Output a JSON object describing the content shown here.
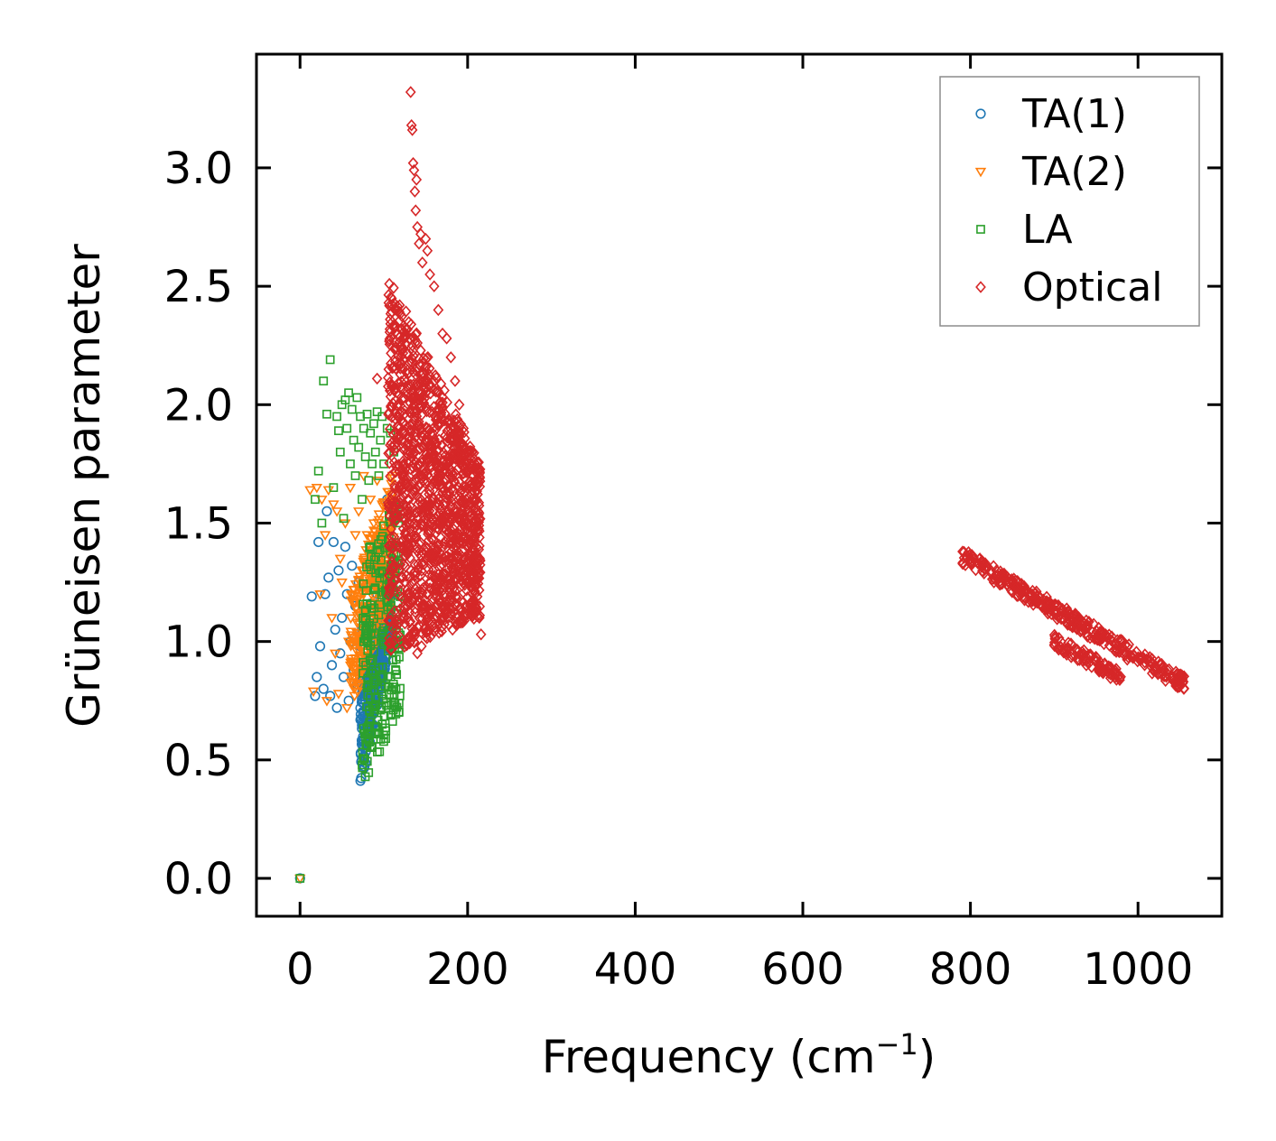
{
  "chart_data": {
    "type": "scatter",
    "title": "",
    "xlabel": "Frequency (cm",
    "xlabel_sup": "−1",
    "xlabel_close": ")",
    "ylabel": "Grüneisen parameter",
    "xlim": [
      -52,
      1100
    ],
    "ylim": [
      -0.16,
      3.48
    ],
    "xticks": [
      0,
      200,
      400,
      600,
      800,
      1000
    ],
    "xtick_labels": [
      "0",
      "200",
      "400",
      "600",
      "800",
      "1000"
    ],
    "yticks": [
      0.0,
      0.5,
      1.0,
      1.5,
      2.0,
      2.5,
      3.0
    ],
    "ytick_labels": [
      "0.0",
      "0.5",
      "1.0",
      "1.5",
      "2.0",
      "2.5",
      "3.0"
    ],
    "grid": false,
    "legend_position": "top-right",
    "series": [
      {
        "name": "TA(1)",
        "marker": "circle",
        "color": "#1f77b4",
        "points": [
          [
            0,
            0.0
          ],
          [
            14,
            1.19
          ],
          [
            18,
            0.77
          ],
          [
            20,
            0.85
          ],
          [
            22,
            1.42
          ],
          [
            24,
            0.98
          ],
          [
            28,
            0.8
          ],
          [
            30,
            1.2
          ],
          [
            32,
            1.55
          ],
          [
            34,
            1.27
          ],
          [
            36,
            0.77
          ],
          [
            38,
            0.9
          ],
          [
            40,
            1.42
          ],
          [
            42,
            1.05
          ],
          [
            44,
            0.72
          ],
          [
            46,
            1.3
          ],
          [
            48,
            0.95
          ],
          [
            50,
            1.1
          ],
          [
            52,
            0.85
          ],
          [
            54,
            1.4
          ],
          [
            56,
            1.2
          ],
          [
            58,
            0.75
          ],
          [
            60,
            1.0
          ],
          [
            62,
            1.32
          ],
          [
            64,
            0.88
          ],
          [
            66,
            1.15
          ],
          [
            68,
            0.82
          ],
          [
            70,
            1.25
          ],
          [
            72,
            0.98
          ],
          [
            74,
            1.05
          ],
          [
            76,
            0.7
          ],
          [
            78,
            1.1
          ],
          [
            80,
            0.85
          ],
          [
            82,
            0.9
          ],
          [
            84,
            1.16
          ],
          [
            86,
            0.8
          ],
          [
            88,
            1.0
          ],
          [
            90,
            0.78
          ],
          [
            92,
            1.2
          ],
          [
            94,
            0.95
          ],
          [
            96,
            1.3
          ],
          [
            98,
            1.05
          ],
          [
            100,
            1.45
          ],
          [
            102,
            1.25
          ],
          [
            104,
            1.6
          ],
          [
            106,
            1.35
          ]
        ],
        "band": {
          "x_start": 72,
          "x_end": 108,
          "y_low_start": 0.38,
          "y_low_end": 1.0,
          "y_high_start": 0.85,
          "y_high_end": 1.25,
          "count": 320
        }
      },
      {
        "name": "TA(2)",
        "marker": "triangle-down",
        "color": "#ff7f0e",
        "points": [
          [
            0,
            0.0
          ],
          [
            12,
            1.64
          ],
          [
            16,
            0.79
          ],
          [
            20,
            1.65
          ],
          [
            24,
            1.2
          ],
          [
            26,
            1.6
          ],
          [
            30,
            1.45
          ],
          [
            32,
            0.75
          ],
          [
            34,
            1.64
          ],
          [
            38,
            1.1
          ],
          [
            40,
            1.58
          ],
          [
            42,
            0.95
          ],
          [
            44,
            1.55
          ],
          [
            46,
            0.78
          ],
          [
            48,
            1.35
          ],
          [
            50,
            1.25
          ],
          [
            54,
            1.5
          ],
          [
            56,
            0.72
          ],
          [
            58,
            1.0
          ],
          [
            60,
            1.65
          ],
          [
            62,
            1.2
          ],
          [
            64,
            0.85
          ],
          [
            66,
            1.45
          ],
          [
            68,
            1.08
          ],
          [
            70,
            1.55
          ],
          [
            72,
            0.9
          ],
          [
            74,
            1.3
          ],
          [
            76,
            1.7
          ],
          [
            78,
            1.15
          ],
          [
            80,
            1.45
          ],
          [
            82,
            0.98
          ],
          [
            84,
            1.6
          ],
          [
            86,
            1.25
          ],
          [
            88,
            1.5
          ],
          [
            90,
            1.05
          ],
          [
            92,
            1.68
          ],
          [
            94,
            1.35
          ],
          [
            96,
            1.15
          ],
          [
            98,
            1.58
          ],
          [
            100,
            1.48
          ]
        ],
        "band": {
          "x_start": 60,
          "x_end": 112,
          "y_low_start": 0.7,
          "y_low_end": 1.2,
          "y_high_start": 1.2,
          "y_high_end": 1.72,
          "count": 340
        }
      },
      {
        "name": "LA",
        "marker": "square",
        "color": "#2ca02c",
        "points": [
          [
            0,
            0.0
          ],
          [
            18,
            1.6
          ],
          [
            22,
            1.72
          ],
          [
            26,
            1.5
          ],
          [
            28,
            2.1
          ],
          [
            32,
            1.96
          ],
          [
            36,
            2.19
          ],
          [
            40,
            1.65
          ],
          [
            44,
            1.95
          ],
          [
            46,
            1.89
          ],
          [
            48,
            1.8
          ],
          [
            50,
            2.0
          ],
          [
            52,
            1.52
          ],
          [
            54,
            2.02
          ],
          [
            56,
            1.9
          ],
          [
            58,
            2.05
          ],
          [
            60,
            1.75
          ],
          [
            62,
            1.98
          ],
          [
            64,
            1.85
          ],
          [
            66,
            1.7
          ],
          [
            68,
            2.03
          ],
          [
            70,
            1.82
          ],
          [
            72,
            1.95
          ],
          [
            74,
            1.6
          ],
          [
            76,
            1.9
          ],
          [
            78,
            1.78
          ],
          [
            80,
            1.96
          ],
          [
            82,
            1.68
          ],
          [
            84,
            1.88
          ],
          [
            86,
            1.75
          ],
          [
            88,
            1.92
          ],
          [
            90,
            1.8
          ],
          [
            92,
            1.97
          ],
          [
            94,
            1.7
          ],
          [
            96,
            1.85
          ],
          [
            98,
            1.95
          ],
          [
            100,
            1.75
          ],
          [
            104,
            1.9
          ],
          [
            108,
            1.88
          ],
          [
            112,
            1.8
          ]
        ],
        "band": {
          "x_start": 74,
          "x_end": 120,
          "y_low_start": 0.38,
          "y_low_end": 0.7,
          "y_high_start": 1.35,
          "y_high_end": 1.62,
          "count": 260
        }
      },
      {
        "name": "Optical",
        "marker": "diamond",
        "color": "#d62728",
        "points": [
          [
            92,
            2.11
          ],
          [
            132,
            3.32
          ],
          [
            133,
            3.18
          ],
          [
            134,
            3.16
          ],
          [
            135,
            3.02
          ],
          [
            136,
            2.99
          ],
          [
            137,
            2.9
          ],
          [
            138,
            2.82
          ],
          [
            139,
            2.95
          ],
          [
            140,
            2.75
          ],
          [
            142,
            2.68
          ],
          [
            144,
            2.72
          ],
          [
            146,
            2.6
          ],
          [
            150,
            2.7
          ],
          [
            152,
            2.65
          ],
          [
            155,
            2.55
          ],
          [
            160,
            2.5
          ],
          [
            165,
            2.4
          ],
          [
            170,
            2.3
          ],
          [
            175,
            2.28
          ],
          [
            180,
            2.2
          ],
          [
            185,
            2.1
          ],
          [
            190,
            2.0
          ],
          [
            195,
            1.9
          ],
          [
            200,
            1.8
          ],
          [
            205,
            1.75
          ],
          [
            210,
            1.4
          ],
          [
            212,
            1.3
          ],
          [
            214,
            1.1
          ],
          [
            216,
            1.03
          ],
          [
            182,
            1.05
          ],
          [
            190,
            1.08
          ],
          [
            140,
            0.95
          ],
          [
            145,
            0.98
          ]
        ],
        "band": {
          "x_start": 105,
          "x_end": 215,
          "y_low_start": 0.95,
          "y_low_end": 1.1,
          "y_high_start": 2.55,
          "y_high_end": 1.75,
          "count": 1400
        },
        "band2": {
          "x_start": 790,
          "x_end": 1055,
          "y_start": 1.36,
          "y_end": 0.82,
          "spread": 0.035,
          "count": 360
        },
        "band3": {
          "x_start": 900,
          "x_end": 980,
          "y_start": 1.0,
          "y_end": 0.85,
          "spread": 0.03,
          "count": 90
        }
      }
    ]
  }
}
